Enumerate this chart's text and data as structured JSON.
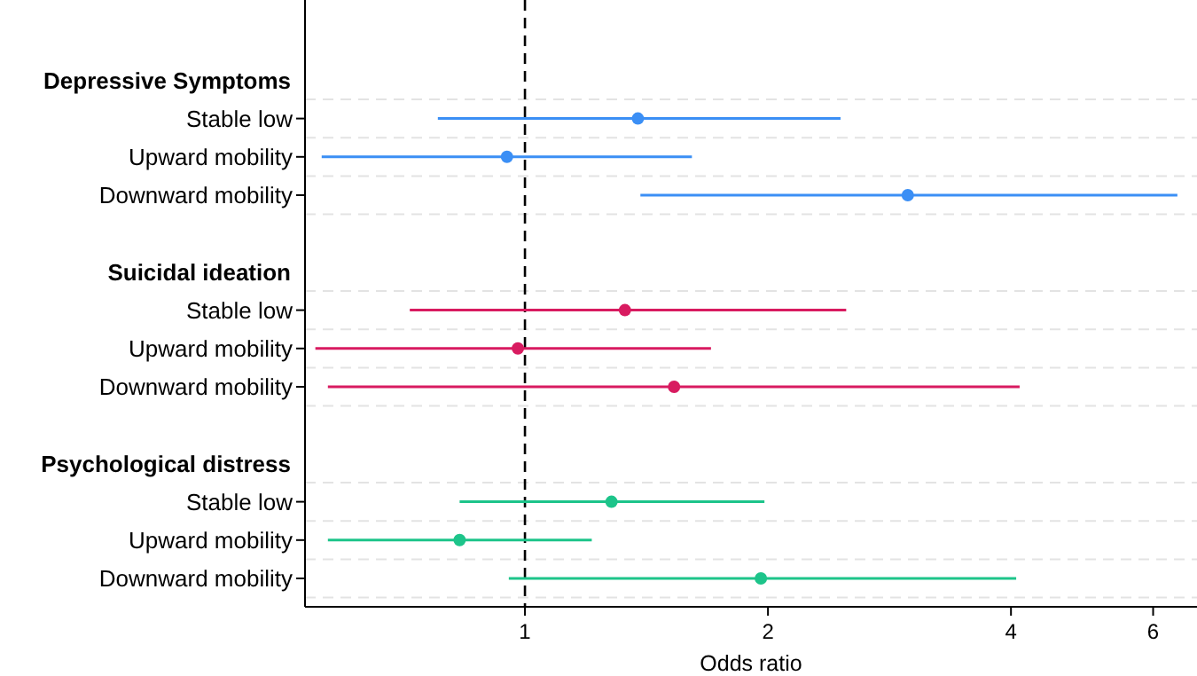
{
  "chart_data": {
    "type": "scatter",
    "orientation": "horizontal",
    "xlabel": "Odds ratio",
    "log": "x",
    "xlim": [
      0.534,
      6.8
    ],
    "xticks": [
      1,
      2,
      4,
      6
    ],
    "grid": "y",
    "marker": "circle",
    "categories": [
      null,
      null,
      "Depressive Symptoms",
      "Stable low",
      "Upward mobility",
      "Downward mobility",
      null,
      "Suicidal ideation",
      "Stable low",
      "Upward mobility",
      "Downward mobility",
      null,
      "Psychological distress",
      "Stable low",
      "Upward mobility",
      "Downward mobility"
    ],
    "ref_lines": [
      {
        "axis": "x",
        "value": 1,
        "label": null,
        "color": "#000000",
        "line_style": "dashed"
      }
    ],
    "series": [
      {
        "color": "#3b8ff5",
        "values": [
          null,
          null,
          null,
          1.38,
          0.95,
          2.98,
          null,
          null,
          null,
          null,
          null,
          null,
          null,
          null,
          null,
          null
        ],
        "errors": [
          null,
          null,
          null,
          [
            0.78,
            2.46
          ],
          [
            0.56,
            1.61
          ],
          [
            1.39,
            6.43
          ],
          null,
          null,
          null,
          null,
          null,
          null,
          null,
          null,
          null,
          null
        ]
      },
      {
        "color": "#d81b60",
        "values": [
          null,
          null,
          null,
          null,
          null,
          null,
          null,
          null,
          1.33,
          0.98,
          1.53,
          null,
          null,
          null,
          null,
          null
        ],
        "errors": [
          null,
          null,
          null,
          null,
          null,
          null,
          null,
          null,
          [
            0.72,
            2.5
          ],
          [
            0.55,
            1.7
          ],
          [
            0.57,
            4.1
          ],
          null,
          null,
          null,
          null,
          null
        ]
      },
      {
        "color": "#1dc48a",
        "values": [
          null,
          null,
          null,
          null,
          null,
          null,
          null,
          null,
          null,
          null,
          null,
          null,
          null,
          1.28,
          0.83,
          1.96
        ],
        "errors": [
          null,
          null,
          null,
          null,
          null,
          null,
          null,
          null,
          null,
          null,
          null,
          null,
          null,
          [
            0.83,
            1.98
          ],
          [
            0.57,
            1.21
          ],
          [
            0.955,
            4.06
          ]
        ]
      }
    ]
  }
}
